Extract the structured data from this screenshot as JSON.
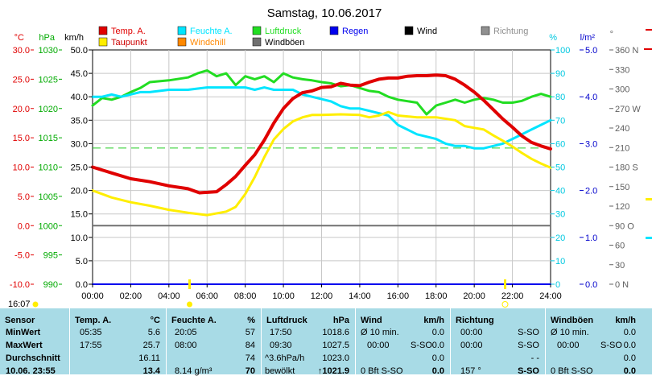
{
  "title": "Samstag, 10.06.2017",
  "colors": {
    "temp": "#e00000",
    "feuchte": "#00e5ff",
    "luftdruck": "#22dd22",
    "regen": "#0000ee",
    "wind": "#000000",
    "richtung": "#909090",
    "taupunkt": "#ffee00",
    "windchill": "#ff8800",
    "windboeen": "#707070",
    "ref_line": "#22cc22",
    "gray_line": "#707070",
    "footer_bg": "#a8dbe6"
  },
  "legend": [
    {
      "label": "Temp. A.",
      "color": "#e00000"
    },
    {
      "label": "Feuchte A.",
      "color": "#00e5ff"
    },
    {
      "label": "Luftdruck",
      "color": "#22dd22"
    },
    {
      "label": "Regen",
      "color": "#0000ee"
    },
    {
      "label": "Wind",
      "color": "#000000"
    },
    {
      "label": "Richtung",
      "color": "#909090"
    },
    {
      "label": "Taupunkt",
      "color": "#ffee00"
    },
    {
      "label": "Windchill",
      "color": "#ff8800"
    },
    {
      "label": "Windböen",
      "color": "#707070"
    }
  ],
  "units": {
    "temp": "°C",
    "hpa": "hPa",
    "kmh": "km/h",
    "pct": "%",
    "rain": "l/m²",
    "dir": "°"
  },
  "axes": {
    "temp_ticks": [
      "30.0",
      "25.0",
      "20.0",
      "15.0",
      "10.0",
      "5.0",
      "0.0",
      "-5.0",
      "-10.0"
    ],
    "hpa_ticks": [
      "1030",
      "1025",
      "1020",
      "1015",
      "1010",
      "1005",
      "1000",
      "995",
      "990"
    ],
    "kmh_ticks": [
      "50.0",
      "45.0",
      "40.0",
      "35.0",
      "30.0",
      "25.0",
      "20.0",
      "15.0",
      "10.0",
      "5.0",
      "0.0"
    ],
    "pct_ticks": [
      "100",
      "90",
      "80",
      "70",
      "60",
      "50",
      "40",
      "30",
      "20",
      "10",
      "0"
    ],
    "rain_ticks": [
      "5.0",
      "4.0",
      "3.0",
      "2.0",
      "1.0",
      "0.0"
    ],
    "dir_ticks": [
      "360 N",
      "330",
      "300",
      "270 W",
      "240",
      "210",
      "180 S",
      "150",
      "120",
      "90 O",
      "60",
      "30",
      "0 N"
    ],
    "x_ticks": [
      "00:00",
      "02:00",
      "04:00",
      "06:00",
      "08:00",
      "10:00",
      "12:00",
      "14:00",
      "16:00",
      "18:00",
      "20:00",
      "22:00",
      "24:00"
    ]
  },
  "markers": {
    "sunrise": "5:05",
    "sunset": "21:37",
    "time_label": "16:07"
  },
  "chart_data": {
    "type": "line",
    "title": "Samstag, 10.06.2017",
    "x_range": [
      "00:00",
      "24:00"
    ],
    "y_ranges": {
      "wind_kmh": [
        0,
        50
      ],
      "temp_c": [
        -10,
        30
      ],
      "pressure_hpa": [
        990,
        1030
      ],
      "humidity_pct": [
        0,
        100
      ],
      "rain_lm2": [
        0,
        5
      ],
      "direction_deg": [
        0,
        360
      ]
    },
    "grid": true,
    "series": [
      {
        "name": "Temp. A.",
        "unit": "°C",
        "axis": "temp_c",
        "x": [
          0,
          1,
          2,
          3,
          4,
          5,
          5.6,
          6.5,
          7,
          7.5,
          8,
          8.5,
          9,
          9.5,
          10,
          10.5,
          11,
          11.5,
          12,
          12.5,
          13,
          13.5,
          14,
          14.5,
          15,
          15.5,
          16,
          16.5,
          17,
          17.5,
          18,
          18.5,
          19,
          19.5,
          20,
          20.5,
          21,
          21.5,
          22,
          22.5,
          23,
          23.5,
          24
        ],
        "y": [
          10.0,
          9.0,
          8.0,
          7.5,
          6.8,
          6.3,
          5.6,
          5.8,
          7.0,
          8.4,
          10.3,
          12.1,
          14.6,
          17.5,
          20.0,
          21.7,
          22.7,
          23.0,
          23.6,
          23.7,
          24.3,
          24.0,
          23.9,
          24.5,
          25.0,
          25.2,
          25.2,
          25.5,
          25.6,
          25.6,
          25.7,
          25.6,
          25.0,
          24.0,
          22.8,
          21.4,
          19.8,
          18.2,
          16.8,
          15.3,
          14.2,
          13.6,
          13.1
        ]
      },
      {
        "name": "Taupunkt",
        "unit": "°C",
        "axis": "temp_c",
        "x": [
          0,
          1,
          2,
          3,
          4,
          5,
          6,
          7,
          7.5,
          8,
          8.5,
          9,
          9.5,
          10,
          10.5,
          11,
          11.5,
          12,
          13,
          14,
          14.5,
          15,
          15.5,
          16,
          17,
          18,
          19,
          19.5,
          20,
          20.5,
          21,
          21.5,
          22,
          22.5,
          23,
          23.5,
          24
        ],
        "y": [
          6.0,
          4.8,
          4.0,
          3.4,
          2.7,
          2.2,
          1.8,
          2.4,
          3.2,
          5.4,
          8.3,
          11.7,
          14.7,
          16.5,
          17.8,
          18.5,
          18.9,
          18.9,
          19.0,
          18.9,
          18.5,
          18.8,
          19.4,
          18.8,
          18.5,
          18.5,
          18.0,
          17.0,
          16.7,
          16.4,
          15.4,
          14.5,
          13.5,
          12.4,
          11.4,
          10.6,
          9.9
        ]
      },
      {
        "name": "Feuchte A.",
        "unit": "%",
        "axis": "humidity_pct",
        "x": [
          0,
          0.5,
          1,
          1.5,
          2,
          2.5,
          3,
          4,
          5,
          6,
          7,
          7.5,
          8,
          8.5,
          9,
          9.5,
          10,
          10.5,
          11,
          11.5,
          12,
          12.5,
          13,
          13.5,
          14,
          14.5,
          15,
          15.5,
          16,
          17,
          18,
          18.5,
          19,
          19.5,
          20,
          20.5,
          21,
          21.5,
          22,
          22.5,
          23,
          23.5,
          24
        ],
        "y": [
          80,
          80,
          81,
          80,
          81,
          82,
          82,
          83,
          83,
          84,
          84,
          84,
          84,
          83,
          84,
          83,
          83,
          83,
          81,
          80,
          79,
          78,
          76,
          75,
          75,
          74,
          73,
          72,
          68,
          64,
          62,
          60,
          59,
          59,
          58,
          58,
          59,
          60,
          62,
          64,
          66,
          68,
          70
        ]
      },
      {
        "name": "Luftdruck",
        "unit": "hPa",
        "axis": "pressure_hpa",
        "x": [
          0,
          0.5,
          1,
          1.5,
          2,
          2.5,
          3,
          4,
          5,
          5.5,
          6,
          6.5,
          7,
          7.5,
          8,
          8.5,
          9,
          9.5,
          10,
          10.5,
          11,
          11.5,
          12,
          12.5,
          13,
          13.5,
          14,
          14.5,
          15,
          15.5,
          16,
          17,
          17.5,
          18,
          18.5,
          19,
          19.5,
          20,
          20.5,
          21,
          21.5,
          22,
          22.5,
          23,
          23.5,
          24
        ],
        "y": [
          1020.5,
          1021.8,
          1021.5,
          1022.0,
          1022.8,
          1023.5,
          1024.5,
          1024.8,
          1025.3,
          1026.0,
          1026.5,
          1025.5,
          1026.0,
          1024.0,
          1025.5,
          1025.0,
          1025.5,
          1024.5,
          1026.0,
          1025.3,
          1025.0,
          1024.8,
          1024.5,
          1024.3,
          1023.8,
          1024.0,
          1023.5,
          1023.0,
          1022.8,
          1022.0,
          1021.5,
          1021.0,
          1019.0,
          1020.5,
          1021.0,
          1021.5,
          1021.0,
          1021.5,
          1021.8,
          1021.5,
          1021.0,
          1021.0,
          1021.3,
          1022.0,
          1022.5,
          1022.0
        ]
      },
      {
        "name": "Wind",
        "unit": "km/h",
        "axis": "wind_kmh",
        "x": [
          0,
          24
        ],
        "y": [
          0,
          0
        ]
      },
      {
        "name": "Regen",
        "unit": "l/m²",
        "axis": "rain_lm2",
        "x": [
          0,
          24
        ],
        "y": [
          0,
          0
        ]
      }
    ],
    "reference_lines": [
      {
        "axis": "pressure_hpa",
        "value": 1013.25,
        "style": "dashed"
      },
      {
        "axis": "temp_c",
        "value": 0,
        "style": "solid"
      }
    ]
  },
  "footer": {
    "sensor": {
      "head": "Sensor",
      "rows": [
        "MinWert",
        "MaxWert",
        "Durchschnitt",
        "10.06. 23:55"
      ]
    },
    "temp": {
      "head": "Temp. A.",
      "unit": "°C",
      "rows": [
        [
          "05:35",
          "5.6"
        ],
        [
          "17:55",
          "25.7"
        ],
        [
          "",
          "16.11"
        ],
        [
          "",
          "13.4"
        ]
      ]
    },
    "feuchte": {
      "head": "Feuchte A.",
      "unit": "%",
      "rows": [
        [
          "20:05",
          "57"
        ],
        [
          "08:00",
          "84"
        ],
        [
          "",
          "74"
        ],
        [
          "8.14 g/m³",
          "70"
        ]
      ]
    },
    "luftdruck": {
      "head": "Luftdruck",
      "unit": "hPa",
      "rows": [
        [
          "17:50",
          "1018.6"
        ],
        [
          "09:30",
          "1027.5"
        ],
        [
          "^3.6hPa/h",
          "1023.0"
        ],
        [
          "bewölkt",
          "↑1021.9"
        ]
      ]
    },
    "wind": {
      "head": "Wind",
      "unit": "km/h",
      "rows": [
        [
          "Ø 10 min.",
          "",
          "0.0"
        ],
        [
          "00:00",
          "S-SO",
          "0.0"
        ],
        [
          "",
          "",
          "0.0"
        ],
        [
          "0 Bft S-SO",
          "",
          "0.0"
        ]
      ]
    },
    "richtung": {
      "head": "Richtung",
      "unit": "",
      "rows": [
        [
          "00:00",
          "S-SO"
        ],
        [
          "00:00",
          "S-SO"
        ],
        [
          "",
          "- -"
        ],
        [
          "157 °",
          "S-SO"
        ]
      ]
    },
    "windboeen": {
      "head": "Windböen",
      "unit": "km/h",
      "rows": [
        [
          "Ø 10 min.",
          "",
          "0.0"
        ],
        [
          "00:00",
          "S-SO",
          "0.0"
        ],
        [
          "",
          "",
          "0.0"
        ],
        [
          "0 Bft S-SO",
          "",
          "0.0"
        ]
      ]
    }
  }
}
